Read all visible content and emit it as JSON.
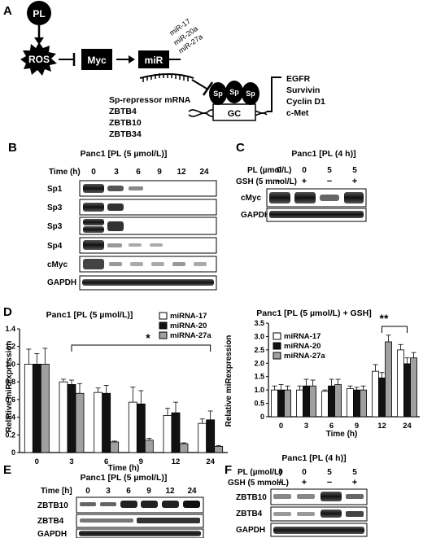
{
  "panel_labels": {
    "A": "A",
    "B": "B",
    "C": "C",
    "D": "D",
    "E": "E",
    "F": "F"
  },
  "schematic": {
    "pl": "PL",
    "ros": "ROS",
    "myc": "Myc",
    "mir": "miR",
    "mirnas": [
      "miR-17",
      "miR-20a",
      "miR-27a"
    ],
    "sp_repressor": "Sp-repressor mRNA",
    "zbtb": [
      "ZBTB4",
      "ZBTB10",
      "ZBTB34"
    ],
    "sp": "Sp",
    "gc": "GC",
    "targets": [
      "EGFR",
      "Survivin",
      "Cyclin D1",
      "c-Met"
    ]
  },
  "panel_b": {
    "title": "Panc1 [PL (5 µmol/L)]",
    "time_label": "Time (h)",
    "times": [
      "0",
      "3",
      "6",
      "9",
      "12",
      "24"
    ],
    "rows": [
      "Sp1",
      "Sp3",
      "Sp3",
      "Sp4",
      "cMyc",
      "GAPDH"
    ]
  },
  "panel_c": {
    "title": "Panc1 [PL (4 h)]",
    "pl_label": "PL (µmol/L)",
    "pl_values": [
      "0",
      "0",
      "5",
      "5"
    ],
    "gsh_label": "GSH (5 mmol/L)",
    "gsh_values": [
      "−",
      "+",
      "−",
      "+"
    ],
    "rows": [
      "cMyc",
      "GAPDH"
    ]
  },
  "panel_e": {
    "title": "Panc1 [PL (5 µmol/L)]",
    "time_label": "Time [h]",
    "times": [
      "0",
      "3",
      "6",
      "9",
      "12",
      "24"
    ],
    "rows": [
      "ZBTB10",
      "ZBTB4",
      "GAPDH"
    ]
  },
  "panel_f": {
    "title": "Panc1 [PL (4 h)]",
    "pl_label": "PL (µmol/L)",
    "pl_values": [
      "0",
      "0",
      "5",
      "5"
    ],
    "gsh_label": "GSH (5 mmol/L)",
    "gsh_values": [
      "−",
      "+",
      "−",
      "+"
    ],
    "rows": [
      "ZBTB10",
      "ZBTB4",
      "GAPDH"
    ]
  },
  "chart_data": [
    {
      "type": "bar",
      "title": "Panc1 [PL (5 µmol/L)]",
      "xlabel": "Time (h)",
      "ylabel": "Relative miRexpression",
      "categories": [
        "0",
        "3",
        "6",
        "9",
        "12",
        "24"
      ],
      "ylim": [
        0,
        1.4
      ],
      "yticks": [
        "0",
        "0.2",
        "0.4",
        "0.6",
        "0.8",
        "1.0",
        "1.2",
        "1.4"
      ],
      "series": [
        {
          "name": "miRNA-17",
          "color": "#ffffff",
          "values": [
            1.0,
            0.8,
            0.68,
            0.57,
            0.42,
            0.33
          ],
          "errors": [
            0.17,
            0.03,
            0.05,
            0.17,
            0.08,
            0.05
          ]
        },
        {
          "name": "miRNA-20",
          "color": "#111111",
          "values": [
            1.0,
            0.77,
            0.67,
            0.55,
            0.45,
            0.37
          ],
          "errors": [
            0.12,
            0.05,
            0.09,
            0.15,
            0.12,
            0.1
          ]
        },
        {
          "name": "miRNA-27a",
          "color": "#a0a0a0",
          "values": [
            1.0,
            0.67,
            0.12,
            0.14,
            0.1,
            0.07
          ],
          "errors": [
            0.18,
            0.11,
            0.01,
            0.02,
            0.01,
            0.01
          ]
        }
      ],
      "significance": "*",
      "legend": "top-right"
    },
    {
      "type": "bar",
      "title": "Panc1 [PL (5 µmol/L) + GSH]",
      "xlabel": "Time (h)",
      "ylabel": "Relative miRexpression",
      "categories": [
        "0",
        "3",
        "6",
        "9",
        "12",
        "24"
      ],
      "ylim": [
        0,
        3.5
      ],
      "yticks": [
        "0",
        "0.5",
        "1.0",
        "1.5",
        "2.0",
        "2.5",
        "3.0",
        "3.5"
      ],
      "series": [
        {
          "name": "miRNA-17",
          "color": "#ffffff",
          "values": [
            1.0,
            1.0,
            0.95,
            1.05,
            1.7,
            2.5
          ],
          "errors": [
            0.15,
            0.15,
            0.05,
            0.1,
            0.25,
            0.2
          ]
        },
        {
          "name": "miRNA-20",
          "color": "#111111",
          "values": [
            1.0,
            1.15,
            1.15,
            1.0,
            1.45,
            1.98
          ],
          "errors": [
            0.2,
            0.25,
            0.25,
            0.1,
            0.2,
            0.22
          ]
        },
        {
          "name": "miRNA-27a",
          "color": "#a0a0a0",
          "values": [
            1.0,
            1.15,
            1.2,
            1.0,
            2.8,
            2.2
          ],
          "errors": [
            0.15,
            0.22,
            0.2,
            0.15,
            0.25,
            0.2
          ]
        }
      ],
      "significance": "**",
      "legend": "top-left"
    }
  ]
}
